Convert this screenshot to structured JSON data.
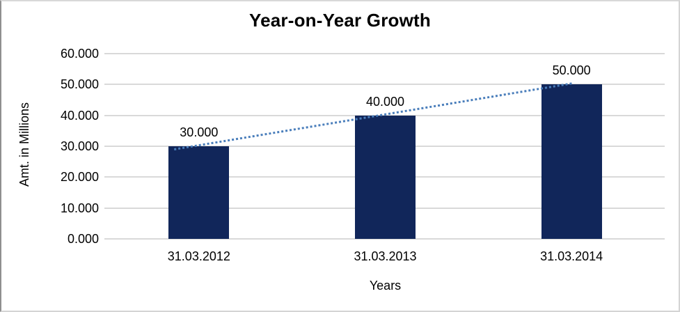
{
  "chart_data": {
    "type": "bar",
    "title": "Year-on-Year Growth",
    "xlabel": "Years",
    "ylabel": "Amt. in Millions",
    "categories": [
      "31.03.2012",
      "31.03.2013",
      "31.03.2014"
    ],
    "values": [
      30,
      40,
      50
    ],
    "value_labels": [
      "30.000",
      "40.000",
      "50.000"
    ],
    "ylim": [
      0,
      60
    ],
    "ytick_step": 10,
    "ytick_labels": [
      "0.000",
      "10.000",
      "20.000",
      "30.000",
      "40.000",
      "50.000",
      "60.000"
    ],
    "grid": true,
    "legend": false,
    "trendline": {
      "style": "dotted",
      "through": "bar-tops"
    },
    "colors": {
      "bar": "#11265A",
      "gridline": "#D9D9D9",
      "trendline": "#4A7EBB",
      "text": "#000000"
    }
  }
}
